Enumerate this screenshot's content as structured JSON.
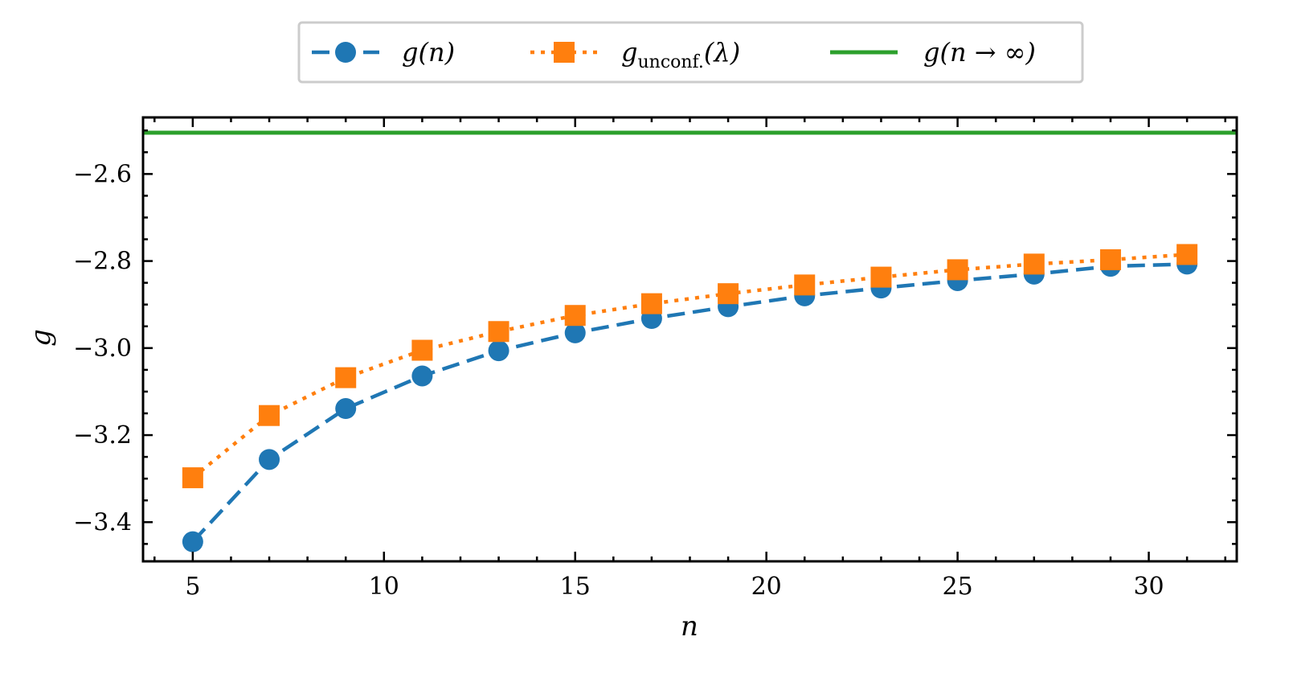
{
  "chart_data": {
    "type": "line",
    "title": "",
    "xlabel": "n",
    "ylabel": "g",
    "xlim": [
      3.7,
      32.3
    ],
    "ylim": [
      -3.49,
      -2.47
    ],
    "xticks": [
      5,
      10,
      15,
      20,
      25,
      30
    ],
    "xtick_labels": [
      "5",
      "10",
      "15",
      "20",
      "25",
      "30"
    ],
    "yticks": [
      -3.4,
      -3.2,
      -3.0,
      -2.8,
      -2.6
    ],
    "ytick_labels": [
      "−3.4",
      "−3.2",
      "−3.0",
      "−2.8",
      "−2.6"
    ],
    "grid": false,
    "legend_position": "top-center",
    "x": [
      5,
      7,
      9,
      11,
      13,
      15,
      17,
      19,
      21,
      23,
      25,
      27,
      29,
      31
    ],
    "series": [
      {
        "name": "g(n)",
        "legend_main": "g(n)",
        "legend_sub": "",
        "legend_tail": "",
        "color": "#1f77b4",
        "marker": "circle",
        "linestyle": "dashed",
        "values": [
          -3.445,
          -3.256,
          -3.139,
          -3.064,
          -3.006,
          -2.965,
          -2.932,
          -2.905,
          -2.88,
          -2.862,
          -2.845,
          -2.83,
          -2.812,
          -2.807
        ]
      },
      {
        "name": "g_unconf.(λ)",
        "legend_main": "g",
        "legend_sub": "unconf.",
        "legend_tail": "(λ)",
        "color": "#ff7f0e",
        "marker": "square",
        "linestyle": "dotted",
        "values": [
          -3.298,
          -3.155,
          -3.068,
          -3.005,
          -2.962,
          -2.925,
          -2.898,
          -2.875,
          -2.855,
          -2.837,
          -2.82,
          -2.807,
          -2.797,
          -2.785
        ]
      },
      {
        "name": "g(n → ∞)",
        "legend_main": "g(n → ∞)",
        "legend_sub": "",
        "legend_tail": "",
        "color": "#2ca02c",
        "marker": "none",
        "linestyle": "solid",
        "constant": -2.505
      }
    ]
  }
}
